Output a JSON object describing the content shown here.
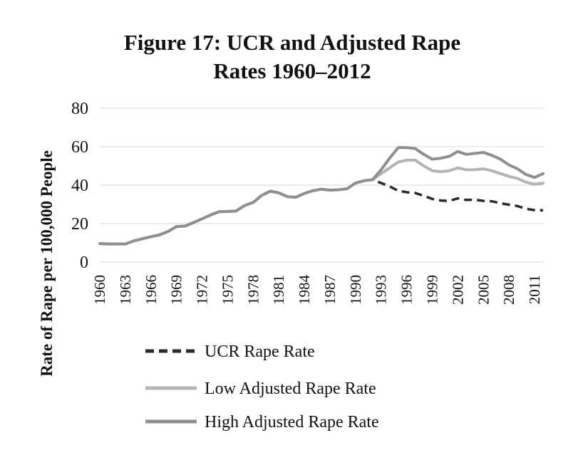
{
  "chart_data": {
    "type": "line",
    "title_lines": [
      "Figure 17: UCR and Adjusted Rape",
      "Rates 1960–2012"
    ],
    "xlabel": "",
    "ylabel": "Rate of Rape per 100,000 People",
    "ylim": [
      0,
      80
    ],
    "yticks": [
      "0",
      "20",
      "40",
      "60",
      "80"
    ],
    "grid": true,
    "legend_position": "bottom",
    "x": [
      1960,
      1961,
      1962,
      1963,
      1964,
      1965,
      1966,
      1967,
      1968,
      1969,
      1970,
      1971,
      1972,
      1973,
      1974,
      1975,
      1976,
      1977,
      1978,
      1979,
      1980,
      1981,
      1982,
      1983,
      1984,
      1985,
      1986,
      1987,
      1988,
      1989,
      1990,
      1991,
      1992,
      1993,
      1994,
      1995,
      1996,
      1997,
      1998,
      1999,
      2000,
      2001,
      2002,
      2003,
      2004,
      2005,
      2006,
      2007,
      2008,
      2009,
      2010,
      2011,
      2012
    ],
    "xticks": [
      "1960",
      "1963",
      "1966",
      "1969",
      "1972",
      "1975",
      "1978",
      "1981",
      "1984",
      "1987",
      "1990",
      "1993",
      "1996",
      "1999",
      "2002",
      "2005",
      "2008",
      "2011"
    ],
    "series": [
      {
        "name": "UCR Rape Rate",
        "color": "#2b2b2b",
        "dash": true,
        "values": [
          9.6,
          9.4,
          9.4,
          9.4,
          11.0,
          12.1,
          13.2,
          14.1,
          15.9,
          18.5,
          18.7,
          20.5,
          22.5,
          24.5,
          26.2,
          26.3,
          26.6,
          29.4,
          31.0,
          34.7,
          36.8,
          36.0,
          34.0,
          33.7,
          35.7,
          37.1,
          37.9,
          37.4,
          37.6,
          38.1,
          41.1,
          42.3,
          42.8,
          41.1,
          39.3,
          37.1,
          36.3,
          35.9,
          34.5,
          32.8,
          32.0,
          31.8,
          33.1,
          32.3,
          32.4,
          31.8,
          31.6,
          30.6,
          29.8,
          29.1,
          27.7,
          27.0,
          26.9
        ]
      },
      {
        "name": "Low Adjusted Rape Rate",
        "color": "#b4b4b4",
        "dash": false,
        "values": [
          9.6,
          9.4,
          9.4,
          9.4,
          11.0,
          12.1,
          13.2,
          14.1,
          15.9,
          18.5,
          18.7,
          20.5,
          22.5,
          24.5,
          26.2,
          26.3,
          26.6,
          29.4,
          31.0,
          34.7,
          36.8,
          36.0,
          34.0,
          33.7,
          35.7,
          37.1,
          37.9,
          37.4,
          37.6,
          38.1,
          41.1,
          42.3,
          42.8,
          46.0,
          49.0,
          52.0,
          53.0,
          53.0,
          50.0,
          47.5,
          47.0,
          47.5,
          49.0,
          48.0,
          48.0,
          48.5,
          47.5,
          46.0,
          44.5,
          43.5,
          41.5,
          40.5,
          41.0
        ]
      },
      {
        "name": "High Adjusted Rape Rate",
        "color": "#8f8f8f",
        "dash": false,
        "values": [
          9.6,
          9.4,
          9.4,
          9.4,
          11.0,
          12.1,
          13.2,
          14.1,
          15.9,
          18.5,
          18.7,
          20.5,
          22.5,
          24.5,
          26.2,
          26.3,
          26.6,
          29.4,
          31.0,
          34.7,
          36.8,
          36.0,
          34.0,
          33.7,
          35.7,
          37.1,
          37.9,
          37.4,
          37.6,
          38.1,
          41.1,
          42.3,
          42.8,
          48.0,
          54.0,
          59.5,
          59.5,
          59.0,
          56.0,
          53.5,
          54.0,
          55.0,
          57.5,
          56.0,
          56.5,
          57.0,
          55.5,
          53.5,
          50.5,
          48.5,
          45.5,
          44.0,
          46.0
        ]
      }
    ]
  }
}
